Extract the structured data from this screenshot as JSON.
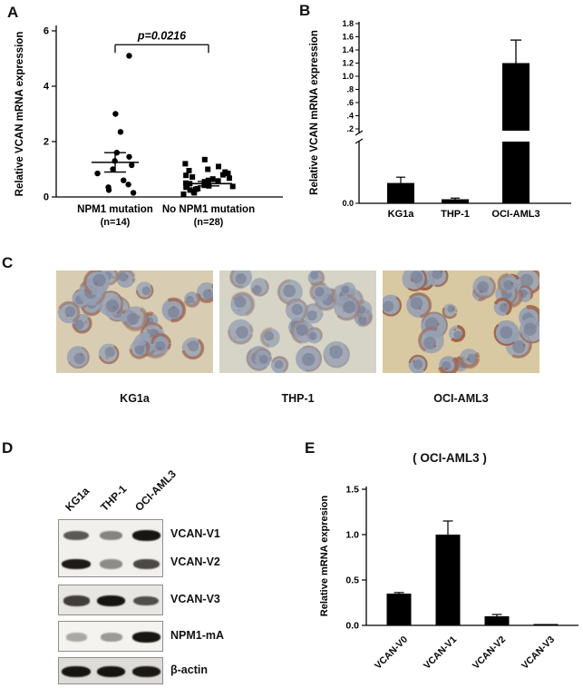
{
  "panels": {
    "a": "A",
    "b": "B",
    "c": "C",
    "d": "D",
    "e": "E"
  },
  "chart_data": [
    {
      "id": "panel-a",
      "type": "scatter",
      "ylabel": "Relative VCAN mRNA expression",
      "ylim": [
        0,
        6
      ],
      "yticks": [
        0,
        2,
        4,
        6
      ],
      "significance": "p=0.0216",
      "groups": [
        {
          "label": "NPM1 mutation",
          "sublabel": "(n=14)",
          "marker": "circle",
          "mean": 1.25,
          "sem": 0.35,
          "values": [
            5.1,
            3.0,
            2.35,
            1.6,
            1.45,
            1.3,
            1.15,
            1.0,
            0.85,
            0.6,
            0.45,
            0.35,
            0.25,
            0.15
          ]
        },
        {
          "label": "No NPM1 mutation",
          "sublabel": "(n=28)",
          "marker": "square",
          "mean": 0.48,
          "sem": 0.08,
          "values": [
            1.35,
            1.2,
            1.1,
            1.0,
            0.95,
            0.9,
            0.85,
            0.8,
            0.78,
            0.72,
            0.68,
            0.65,
            0.6,
            0.58,
            0.55,
            0.5,
            0.48,
            0.45,
            0.42,
            0.4,
            0.38,
            0.35,
            0.3,
            0.28,
            0.25,
            0.2,
            0.15,
            0.1
          ]
        }
      ]
    },
    {
      "id": "panel-b",
      "type": "bar",
      "ylabel": "Relative VCAN mRNA expression",
      "categories": [
        "KG1a",
        "THP-1",
        "OCI-AML3"
      ],
      "values": [
        0.035,
        0.007,
        1.2
      ],
      "errors": [
        0.01,
        0.002,
        0.35
      ],
      "axis_break": {
        "lower_max": 0.1,
        "upper_min": 0.2,
        "upper_max": 1.8
      },
      "upper_tick_values": [
        1.8,
        1.6,
        1.4,
        1.2,
        1.0,
        0.8,
        0.6,
        0.4,
        0.2
      ],
      "upper_tick_labels": [
        "1.8",
        "1.6",
        "1.4",
        "1.2",
        "1.0",
        ".8",
        ".6",
        ".4",
        ".2"
      ],
      "lower_tick_labels": [
        "0.0"
      ]
    },
    {
      "id": "panel-e",
      "type": "bar",
      "title": "( OCI-AML3 )",
      "ylabel": "Relative mRNA expresion",
      "categories": [
        "VCAN-V0",
        "VCAN-V1",
        "VCAN-V2",
        "VCAN-V3"
      ],
      "values": [
        0.35,
        1.0,
        0.1,
        0.015
      ],
      "errors": [
        0.012,
        0.15,
        0.02,
        0.004
      ],
      "ylim": [
        0,
        1.5
      ],
      "yticks": [
        "0.0",
        "0.5",
        "1.0",
        "1.5"
      ],
      "ytick_values": [
        0,
        0.5,
        1.0,
        1.5
      ]
    }
  ],
  "micrographs": {
    "labels": [
      "KG1a",
      "THP-1",
      "OCI-AML3"
    ],
    "backgrounds": [
      "#d8cdb2",
      "#d6d4c6",
      "#d9c9a2"
    ],
    "cell_color": "#96a0b2",
    "nucleus_color": "#6d7692",
    "stain_color": "#a0512c",
    "stain_strength": [
      0.6,
      0.3,
      0.85
    ]
  },
  "western_blot": {
    "lanes": [
      "KG1a",
      "THP-1",
      "OCI-AML3"
    ],
    "rows": [
      {
        "label": "VCAN-V1",
        "intensities": [
          0.55,
          0.3,
          0.95
        ]
      },
      {
        "label": "VCAN-V2",
        "intensities": [
          0.92,
          0.25,
          0.65
        ]
      },
      {
        "label": "VCAN-V3",
        "intensities": [
          0.7,
          0.95,
          0.6
        ]
      },
      {
        "label": "NPM1-mA",
        "intensities": [
          0.1,
          0.18,
          0.95
        ]
      },
      {
        "label": "β-actin",
        "intensities": [
          0.95,
          0.95,
          0.92
        ]
      }
    ]
  }
}
